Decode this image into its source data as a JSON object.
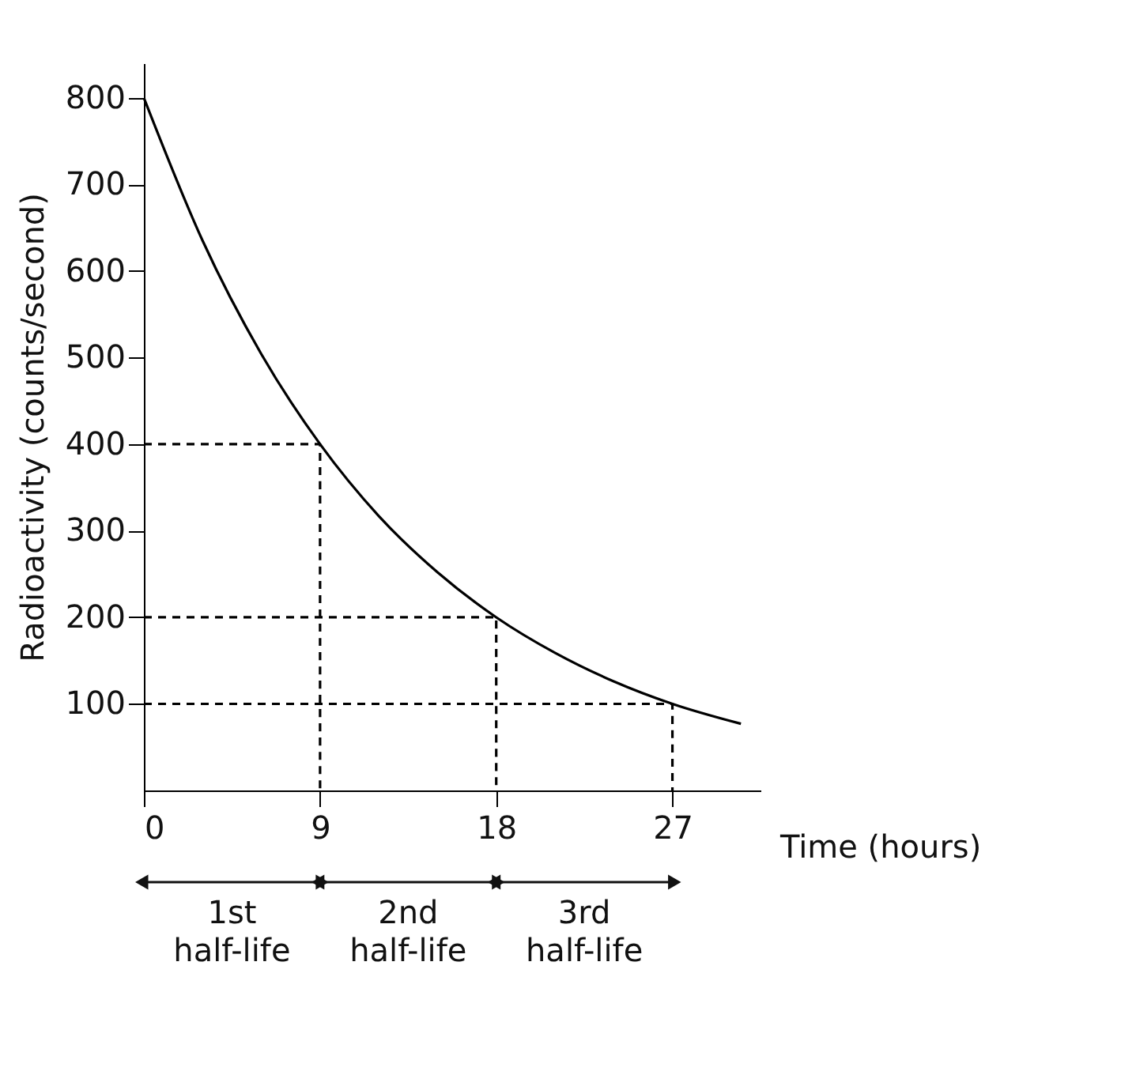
{
  "chart_data": {
    "type": "line",
    "xlabel": "Time (hours)",
    "ylabel": "Radioactivity (counts/second)",
    "xlim": [
      0,
      31.5
    ],
    "xticks": [
      0,
      9,
      18,
      27
    ],
    "ylim": [
      0,
      840
    ],
    "yticks": [
      100,
      200,
      300,
      400,
      500,
      600,
      700,
      800
    ],
    "grid": false,
    "marker": "none",
    "series": [
      {
        "color": "#000000",
        "line_style": "solid",
        "x": [
          0,
          3,
          6,
          9,
          12,
          15,
          18,
          21,
          24,
          27,
          30.5
        ],
        "values": [
          800,
          635,
          504,
          400,
          317,
          252,
          200,
          159,
          126,
          100,
          77
        ]
      },
      {
        "color": "#000000",
        "line_style": "dashed",
        "x": [
          0,
          9,
          9
        ],
        "values": [
          400,
          400,
          0
        ]
      },
      {
        "color": "#000000",
        "line_style": "dashed",
        "x": [
          0,
          18,
          18
        ],
        "values": [
          200,
          200,
          0
        ]
      },
      {
        "color": "#000000",
        "line_style": "dashed",
        "x": [
          0,
          27,
          27
        ],
        "values": [
          100,
          100,
          0
        ]
      }
    ],
    "annotations": [
      "1st half-life",
      "2nd half-life",
      "3rd half-life"
    ]
  }
}
